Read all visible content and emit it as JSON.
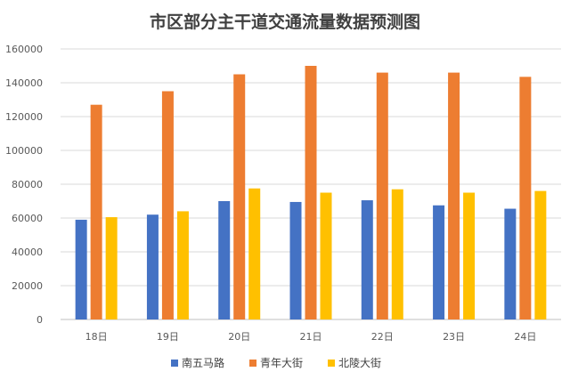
{
  "chart_data": {
    "type": "bar",
    "title": "市区部分主干道交通流量数据预测图",
    "categories": [
      "18日",
      "19日",
      "20日",
      "21日",
      "22日",
      "23日",
      "24日"
    ],
    "series": [
      {
        "name": "南五马路",
        "color": "#4472C4",
        "values": [
          59000,
          62000,
          70000,
          69500,
          70500,
          67500,
          65500
        ]
      },
      {
        "name": "青年大街",
        "color": "#ED7D31",
        "values": [
          127000,
          135000,
          145000,
          150000,
          146000,
          146000,
          143500
        ]
      },
      {
        "name": "北陵大街",
        "color": "#FFC000",
        "values": [
          60500,
          64000,
          77500,
          75000,
          77000,
          75000,
          76000
        ]
      }
    ],
    "ylim": [
      0,
      160000
    ],
    "yticks": [
      "0",
      "20000",
      "40000",
      "60000",
      "80000",
      "100000",
      "120000",
      "140000",
      "160000"
    ],
    "grid": true,
    "legend": "bottom"
  }
}
